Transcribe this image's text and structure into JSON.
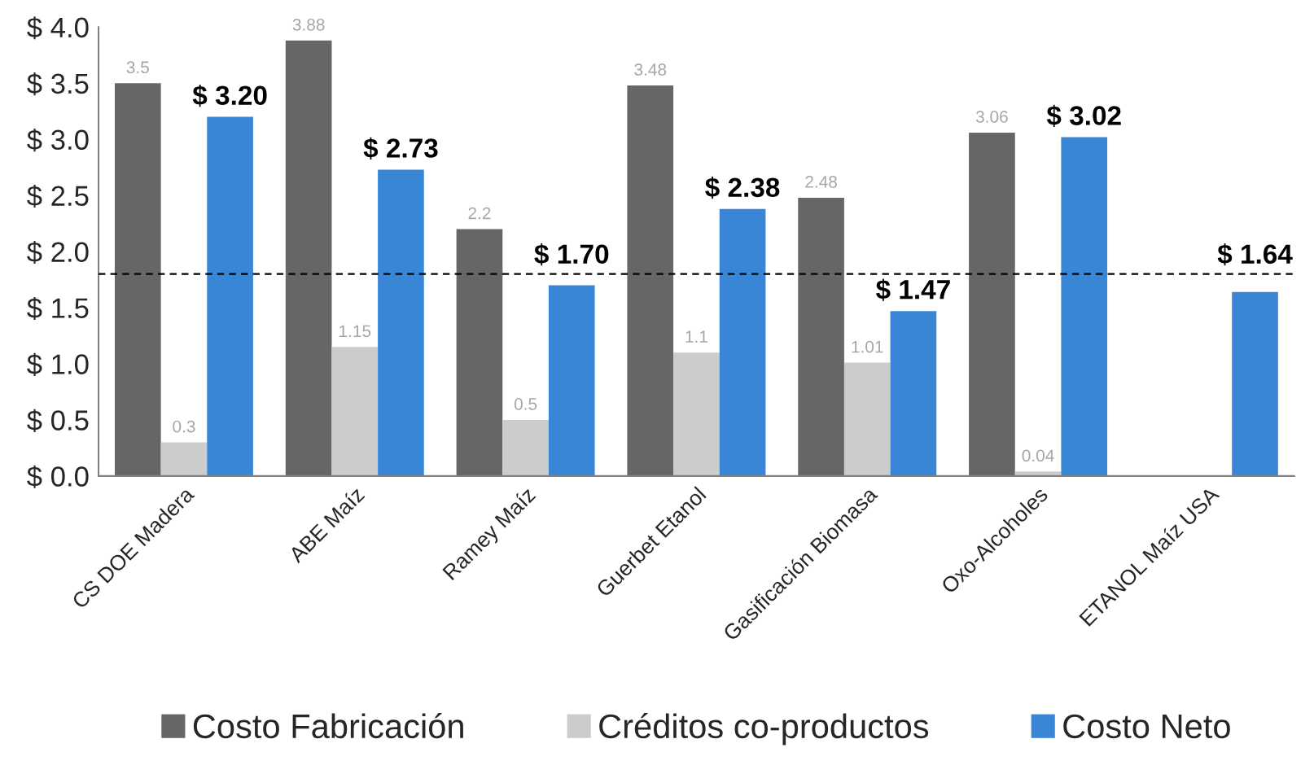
{
  "chart_data": {
    "type": "bar",
    "categories": [
      "CS DOE Madera",
      "ABE Maíz",
      "Ramey Maíz",
      "Guerbet Etanol",
      "Gasificación Biomasa",
      "Oxo-Alcoholes",
      "ETANOL Maíz USA"
    ],
    "series": [
      {
        "name": "Costo Fabricación",
        "color": "#666666",
        "values": [
          3.5,
          3.88,
          2.2,
          3.48,
          2.48,
          3.06,
          null
        ],
        "value_labels": [
          "3.5",
          "3.88",
          "2.2",
          "3.48",
          "2.48",
          "3.06",
          null
        ]
      },
      {
        "name": "Créditos co-productos",
        "color": "#cccccc",
        "values": [
          0.3,
          1.15,
          0.5,
          1.1,
          1.01,
          0.04,
          null
        ],
        "value_labels": [
          "0.3",
          "1.15",
          "0.5",
          "1.1",
          "1.01",
          "0.04",
          null
        ]
      },
      {
        "name": "Costo Neto",
        "color": "#3a86d6",
        "values": [
          3.2,
          2.73,
          1.7,
          2.38,
          1.47,
          3.02,
          1.64
        ],
        "value_labels": [
          "$ 3.20",
          "$ 2.73",
          "$ 1.70",
          "$ 2.38",
          "$ 1.47",
          "$ 3.02",
          "$ 1.64"
        ]
      }
    ],
    "ylim": [
      0,
      4
    ],
    "yticks": [
      {
        "value": 0,
        "label": "$ 0.0"
      },
      {
        "value": 0.5,
        "label": "$ 0.5"
      },
      {
        "value": 1,
        "label": "$ 1.0"
      },
      {
        "value": 1.5,
        "label": "$ 1.5"
      },
      {
        "value": 2,
        "label": "$ 2.0"
      },
      {
        "value": 2.5,
        "label": "$ 2.5"
      },
      {
        "value": 3,
        "label": "$ 3.0"
      },
      {
        "value": 3.5,
        "label": "$ 3.5"
      },
      {
        "value": 4,
        "label": "$ 4.0"
      }
    ],
    "grid": false,
    "legend": "bottom",
    "ref_lines": [
      {
        "axis": "y",
        "value": 1.8,
        "color": "#000000",
        "line_style": "dashed"
      }
    ]
  }
}
